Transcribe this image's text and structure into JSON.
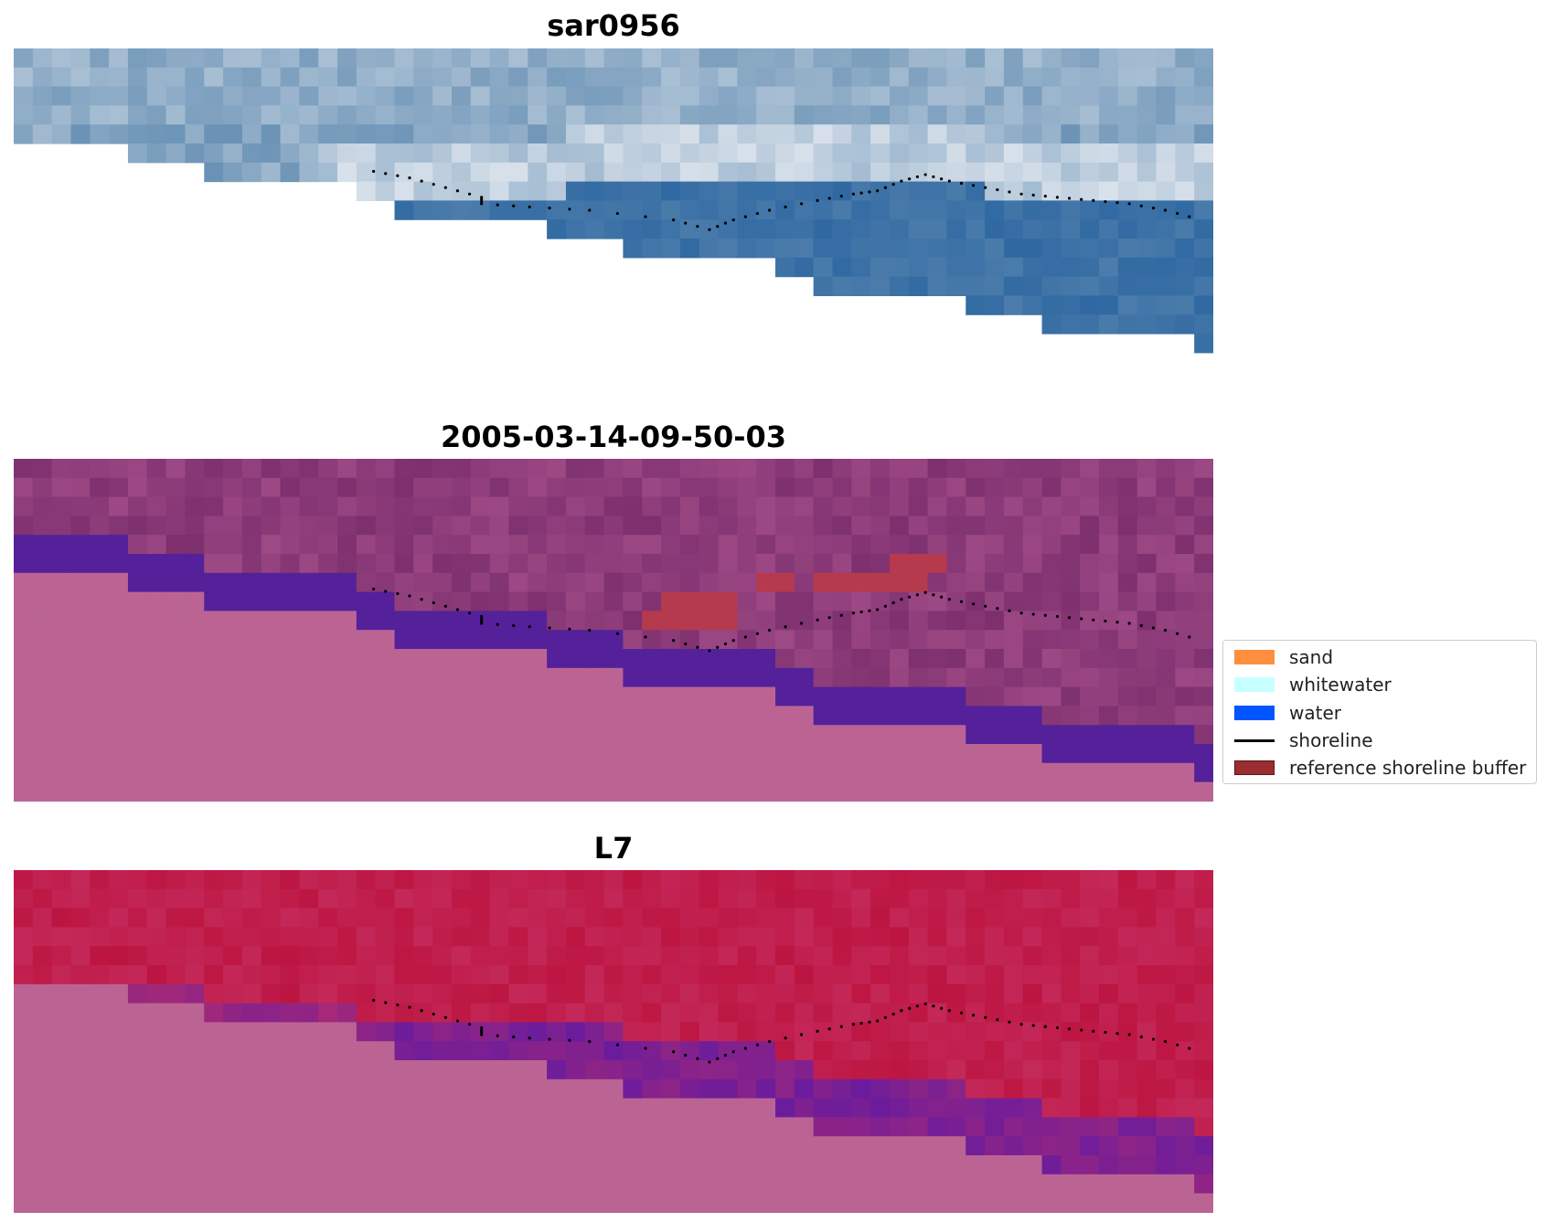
{
  "panels": [
    {
      "title": "sar0956",
      "style": "rgb",
      "colors": {
        "dark": "#2f68a2",
        "mid": "#6790b4",
        "light": "#dfe6ee"
      }
    },
    {
      "title": "2005-03-14-09-50-03",
      "style": "classified",
      "colors": {
        "sky": "#7d2f6e",
        "skyLight": "#a44f8a",
        "water": "#54219a",
        "land": "#bb6494",
        "buffer": "#b63a4d"
      }
    },
    {
      "title": "L7",
      "style": "ndwi",
      "colors": {
        "red": "#bd1541",
        "pinkred": "#c63163",
        "purple": "#6b1c9c",
        "land": "#bb6494"
      }
    }
  ],
  "legend": [
    {
      "label": "sand",
      "color": "#ff8f3f",
      "kind": "patch"
    },
    {
      "label": "whitewater",
      "color": "#c8ffff",
      "kind": "patch"
    },
    {
      "label": "water",
      "color": "#0055ff",
      "kind": "patch"
    },
    {
      "label": "shoreline",
      "color": "#000000",
      "kind": "line"
    },
    {
      "label": "reference shoreline buffer",
      "color": "#9a2d31",
      "kind": "patch-edged"
    }
  ]
}
